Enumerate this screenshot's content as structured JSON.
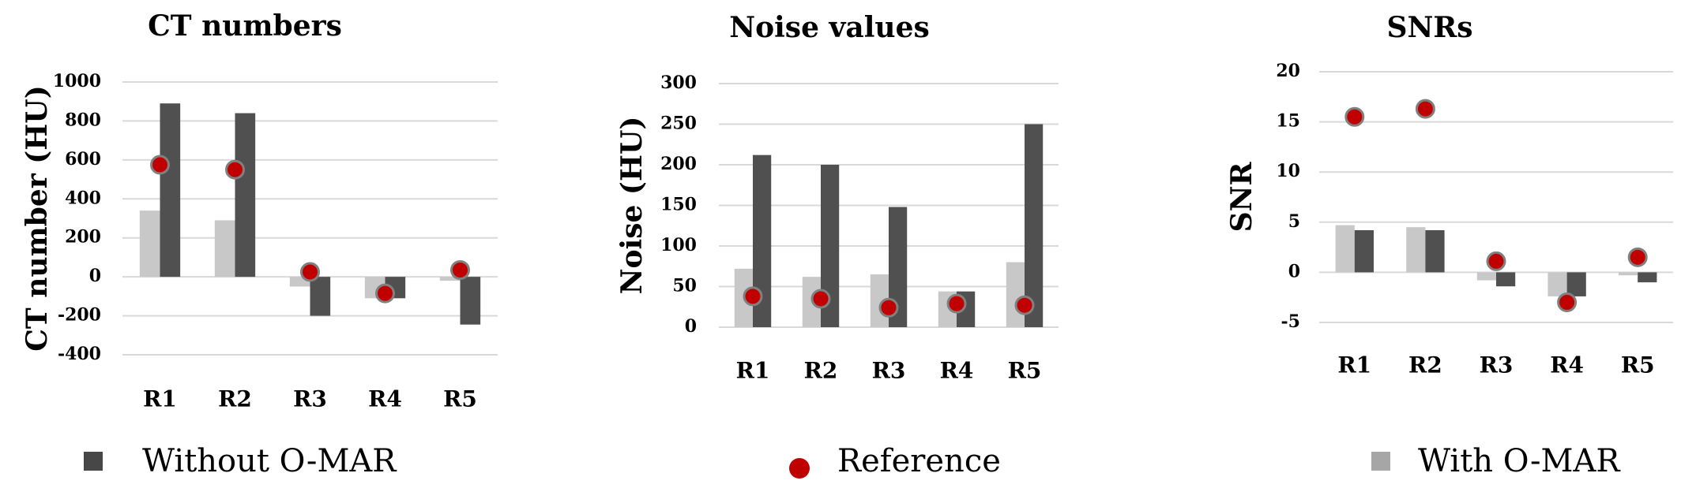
{
  "legend": [
    {
      "label": "Without O-MAR",
      "marker": "square",
      "color": "#474747"
    },
    {
      "label": "Reference",
      "marker": "circle",
      "color": "#c00000"
    },
    {
      "label": "With O-MAR",
      "marker": "square",
      "color": "#bfbfbf"
    }
  ],
  "colors": {
    "with_omar": "#c8c8c8",
    "without_omar": "#505050",
    "reference": "#c00000",
    "reference_outline": "#808080",
    "grid": "#d9d9d9"
  },
  "chart_data": [
    {
      "type": "bar",
      "title": "CT numbers",
      "ylabel": "CT number (HU)",
      "xlabel": "",
      "categories": [
        "R1",
        "R2",
        "R3",
        "R4",
        "R5"
      ],
      "ylim": [
        -400,
        1000
      ],
      "yticks": [
        1000,
        800,
        600,
        400,
        200,
        0,
        -200,
        -400
      ],
      "grid": true,
      "series": [
        {
          "name": "With O-MAR",
          "kind": "bar",
          "values": [
            340,
            290,
            -50,
            -110,
            -20
          ]
        },
        {
          "name": "Without O-MAR",
          "kind": "bar",
          "values": [
            890,
            840,
            -200,
            -110,
            -245
          ]
        },
        {
          "name": "Reference",
          "kind": "point",
          "values": [
            575,
            550,
            25,
            -85,
            35
          ]
        }
      ]
    },
    {
      "type": "bar",
      "title": "Noise values",
      "ylabel": "Noise (HU)",
      "xlabel": "",
      "categories": [
        "R1",
        "R2",
        "R3",
        "R4",
        "R5"
      ],
      "ylim": [
        0,
        300
      ],
      "yticks": [
        300,
        250,
        200,
        150,
        100,
        50,
        0
      ],
      "grid": true,
      "series": [
        {
          "name": "With O-MAR",
          "kind": "bar",
          "values": [
            72,
            62,
            65,
            44,
            80
          ]
        },
        {
          "name": "Without O-MAR",
          "kind": "bar",
          "values": [
            212,
            200,
            148,
            44,
            250
          ]
        },
        {
          "name": "Reference",
          "kind": "point",
          "values": [
            38,
            35,
            24,
            29,
            27
          ]
        }
      ]
    },
    {
      "type": "bar",
      "title": "SNRs",
      "ylabel": "SNR",
      "xlabel": "",
      "categories": [
        "R1",
        "R2",
        "R3",
        "R4",
        "R5"
      ],
      "ylim": [
        -5,
        20
      ],
      "yticks": [
        20,
        15,
        10,
        5,
        0,
        -5
      ],
      "grid": true,
      "series": [
        {
          "name": "With O-MAR",
          "kind": "bar",
          "values": [
            4.7,
            4.5,
            -0.8,
            -2.4,
            -0.3
          ]
        },
        {
          "name": "Without O-MAR",
          "kind": "bar",
          "values": [
            4.2,
            4.2,
            -1.4,
            -2.4,
            -1.0
          ]
        },
        {
          "name": "Reference",
          "kind": "point",
          "values": [
            15.5,
            16.3,
            1.1,
            -3.0,
            1.5
          ]
        }
      ]
    }
  ]
}
